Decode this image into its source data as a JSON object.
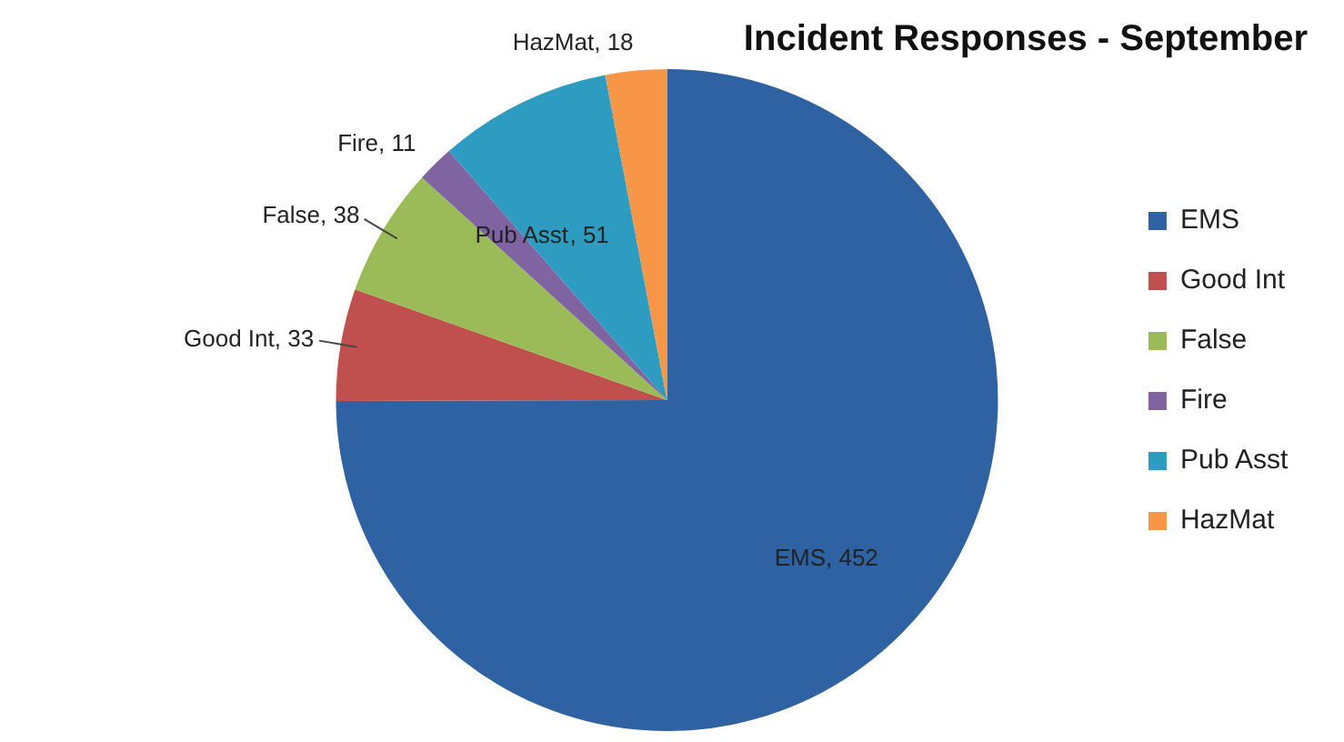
{
  "chart_data": {
    "type": "pie",
    "title": "Incident Responses - September",
    "categories": [
      "EMS",
      "Good Int",
      "False",
      "Fire",
      "Pub Asst",
      "HazMat"
    ],
    "values": [
      452,
      33,
      38,
      11,
      51,
      18
    ],
    "value_labels": [
      ", 452",
      ", 33",
      ", 38",
      ", 11",
      ", 51",
      ", 18"
    ],
    "colors": [
      "#2e62a3",
      "#c0504d",
      "#9bbb59",
      "#8064a2",
      "#2e9cc0",
      "#f79646"
    ],
    "legend": "right"
  }
}
